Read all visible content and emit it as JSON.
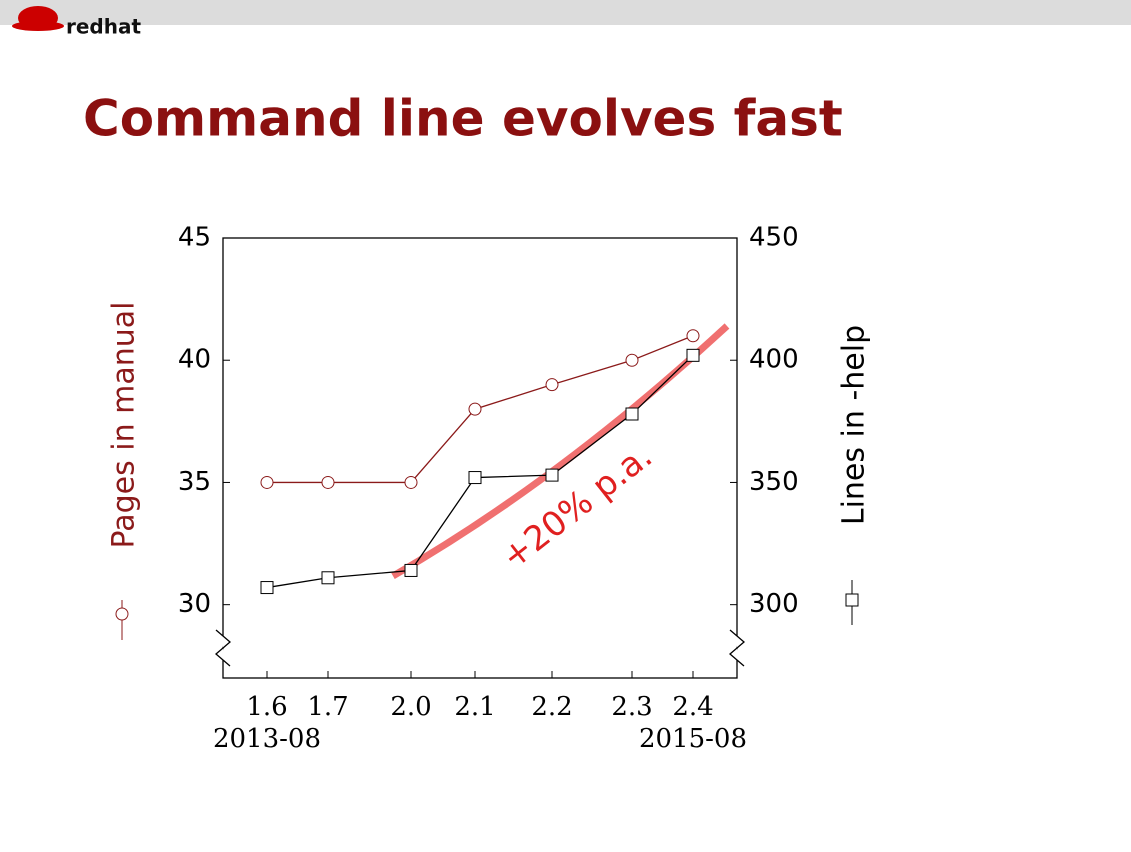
{
  "logo": "redhat",
  "chart_data": {
    "type": "line",
    "title": "Command line evolves fast",
    "categories": [
      "1.6",
      "1.7",
      "2.0",
      "2.1",
      "2.2",
      "2.3",
      "2.4"
    ],
    "x_date_labels": [
      "2013-08",
      null,
      null,
      null,
      null,
      null,
      "2015-08"
    ],
    "series": [
      {
        "name": "Pages in manual",
        "color": "#8b1a1a",
        "marker": "circle",
        "values": [
          35,
          35,
          35,
          38,
          39,
          40,
          41
        ]
      },
      {
        "name": "Lines in -help",
        "color": "#000000",
        "marker": "square",
        "axis": "y2",
        "values": [
          307,
          311,
          314,
          352,
          353,
          378,
          402
        ]
      }
    ],
    "ylim": [
      27,
      45
    ],
    "yticks": [
      30,
      35,
      40,
      45
    ],
    "y2lim": [
      270,
      450
    ],
    "y2ticks": [
      300,
      350,
      400,
      450
    ],
    "annotation": "+20% p.a."
  }
}
